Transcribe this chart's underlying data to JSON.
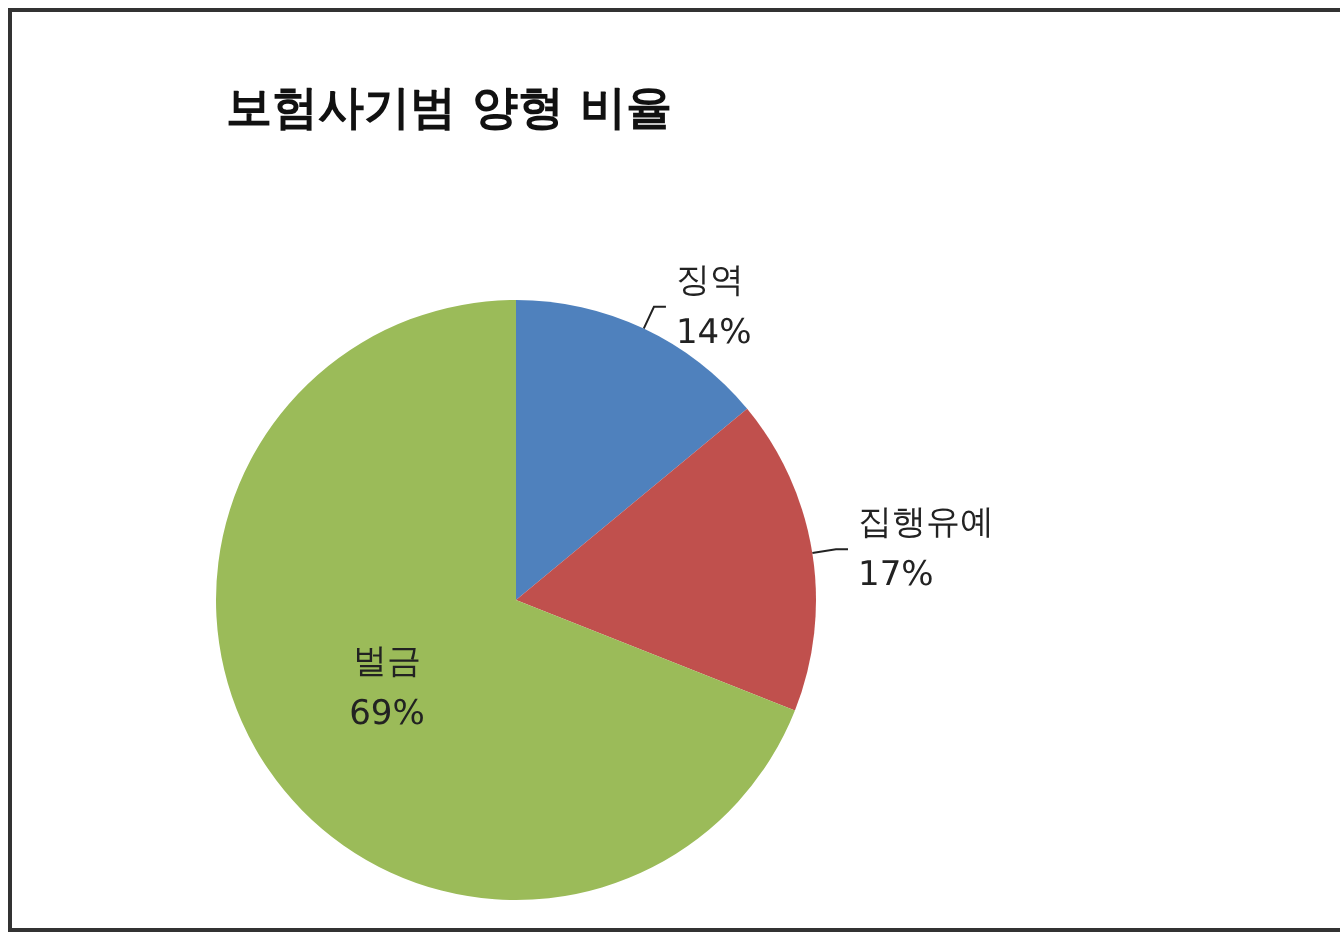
{
  "chart_data": {
    "type": "pie",
    "title": "보험사기범 양형 비율",
    "categories": [
      "징역",
      "집행유예",
      "벌금"
    ],
    "values": [
      14,
      17,
      69
    ],
    "value_labels": [
      "14%",
      "17%",
      "69%"
    ],
    "colors": [
      "#4f81bd",
      "#c0504d",
      "#9bbb59"
    ],
    "legend": false
  }
}
